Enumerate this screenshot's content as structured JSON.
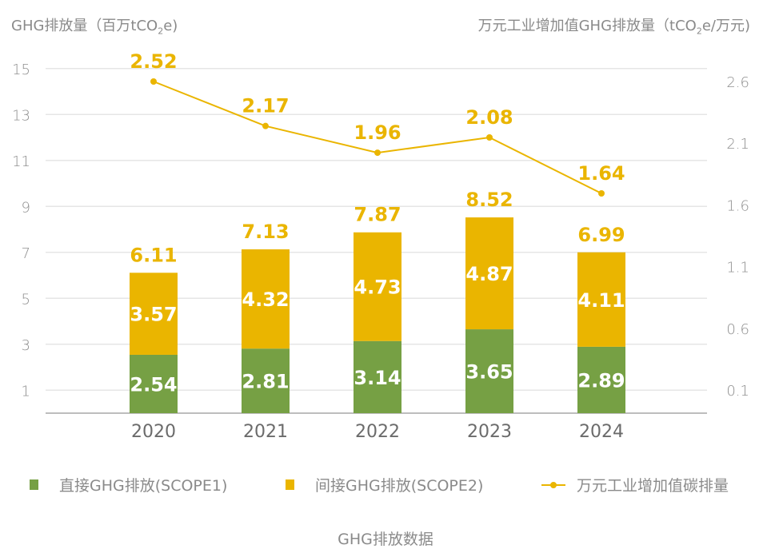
{
  "chart_data": {
    "type": "bar",
    "subtype": "stacked-bar-with-line",
    "title": "GHG排放数据",
    "categories": [
      "2020",
      "2021",
      "2022",
      "2023",
      "2024"
    ],
    "left_axis": {
      "label_main": "GHG排放量（百万tCO",
      "label_sub": "2",
      "label_end": "e)",
      "ticks": [
        1,
        3,
        5,
        7,
        9,
        11,
        13,
        15
      ],
      "ylim": [
        0,
        15
      ]
    },
    "right_axis": {
      "label_main": "万元工业增加值GHG排放量（tCO",
      "label_sub": "2",
      "label_end": "e/万元)",
      "ticks": [
        "0.1",
        "0.6",
        "1.1",
        "1.6",
        "2.1",
        "2.6"
      ]
    },
    "series": [
      {
        "name": "直接GHG排放(SCOPE1)",
        "type": "bar",
        "color": "#76a044",
        "values": [
          2.54,
          2.81,
          3.14,
          3.65,
          2.89
        ]
      },
      {
        "name": "间接GHG排放(SCOPE2)",
        "type": "bar",
        "color": "#eab500",
        "values": [
          3.57,
          4.32,
          4.73,
          4.87,
          4.11
        ]
      },
      {
        "name": "万元工业增加值碳排量",
        "type": "line",
        "axis": "right",
        "color": "#eab500",
        "values": [
          2.52,
          2.17,
          1.96,
          2.08,
          1.64
        ]
      }
    ],
    "totals": [
      6.11,
      7.13,
      7.87,
      8.52,
      6.99
    ],
    "total_labels": [
      "6.11",
      "7.13",
      "7.87",
      "8.52",
      "6.99"
    ],
    "scope1_labels": [
      "2.54",
      "2.81",
      "3.14",
      "3.65",
      "2.89"
    ],
    "scope2_labels": [
      "3.57",
      "4.32",
      "4.73",
      "4.87",
      "4.11"
    ],
    "line_labels": [
      "2.52",
      "2.17",
      "1.96",
      "2.08",
      "1.64"
    ],
    "legend_position": "bottom",
    "grid": true
  }
}
